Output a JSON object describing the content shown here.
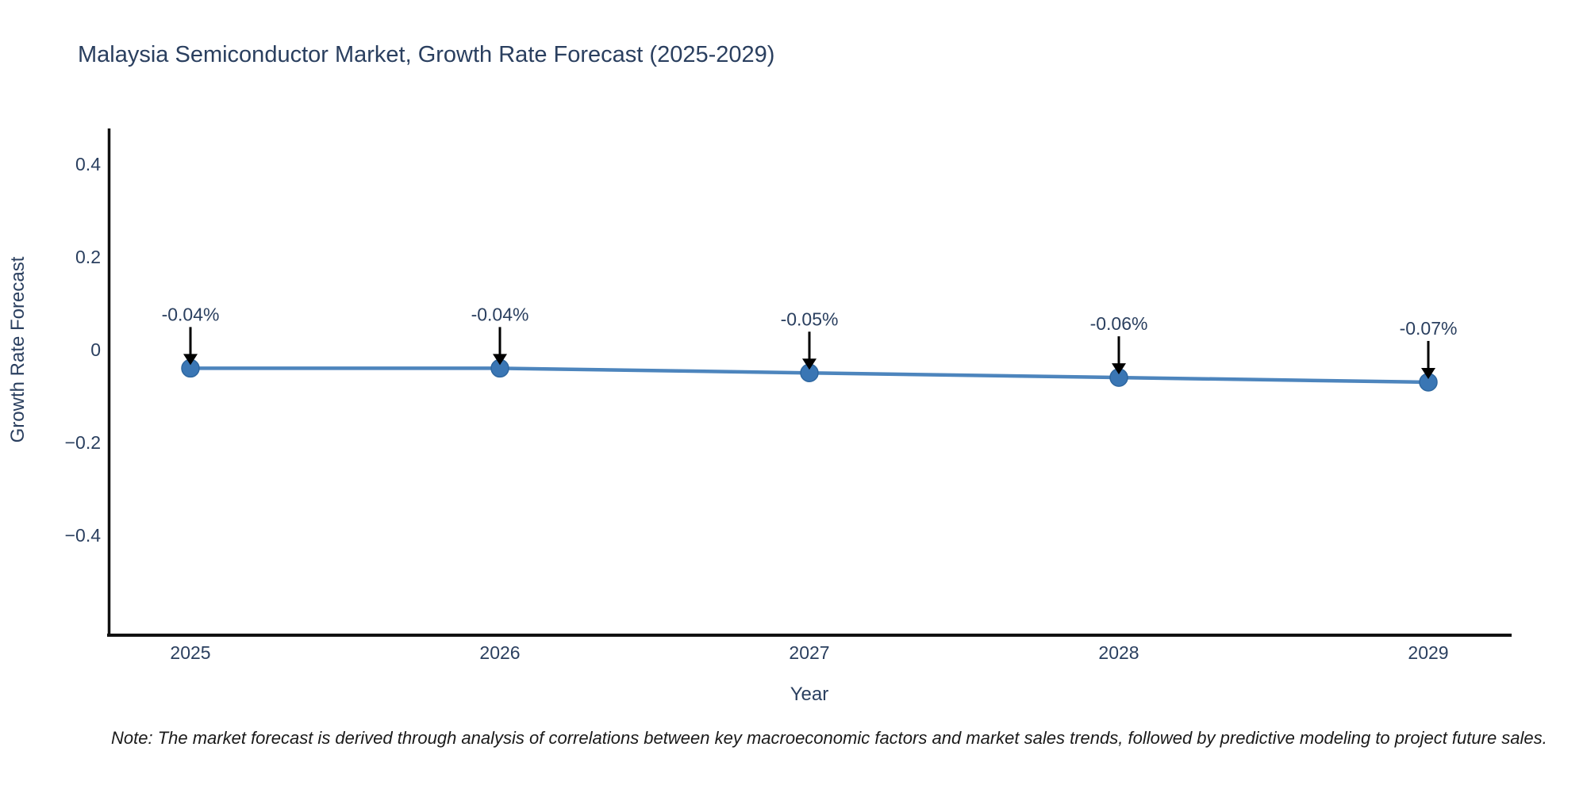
{
  "header": {
    "title": "Malaysia Semiconductor Market, Growth Rate Forecast (2025-2029)"
  },
  "chart_data": {
    "type": "line",
    "title": "Malaysia Semiconductor Market, Growth Rate Forecast (2025-2029)",
    "xlabel": "Year",
    "ylabel": "Growth Rate Forecast",
    "x": [
      2025,
      2026,
      2027,
      2028,
      2029
    ],
    "x_tick_labels": [
      "2025",
      "2026",
      "2027",
      "2028",
      "2029"
    ],
    "values": [
      -0.04,
      -0.04,
      -0.05,
      -0.06,
      -0.07
    ],
    "point_labels": [
      "-0.04%",
      "-0.04%",
      "-0.05%",
      "-0.06%",
      "-0.07%"
    ],
    "y_ticks": [
      0.4,
      0.2,
      0,
      -0.2,
      -0.4
    ],
    "y_tick_labels": [
      "0.4",
      "0.2",
      "0",
      "−0.2",
      "−0.4"
    ],
    "ylim": [
      -0.62,
      0.47
    ],
    "xlim": [
      2024.73,
      2029.27
    ],
    "grid": false,
    "legend": "none",
    "annotations_have_arrows": true,
    "colors": {
      "line": "#4d85bd",
      "marker_fill": "#3a76b4",
      "marker_edge": "#2e67a0",
      "axis_line": "#111111",
      "text": "#2a3f5f",
      "arrow": "#000000",
      "background": "#ffffff"
    }
  },
  "footer": {
    "note": "Note: The market forecast is derived through analysis of correlations between key macroeconomic factors and market sales trends, followed by predictive modeling to project future sales."
  }
}
